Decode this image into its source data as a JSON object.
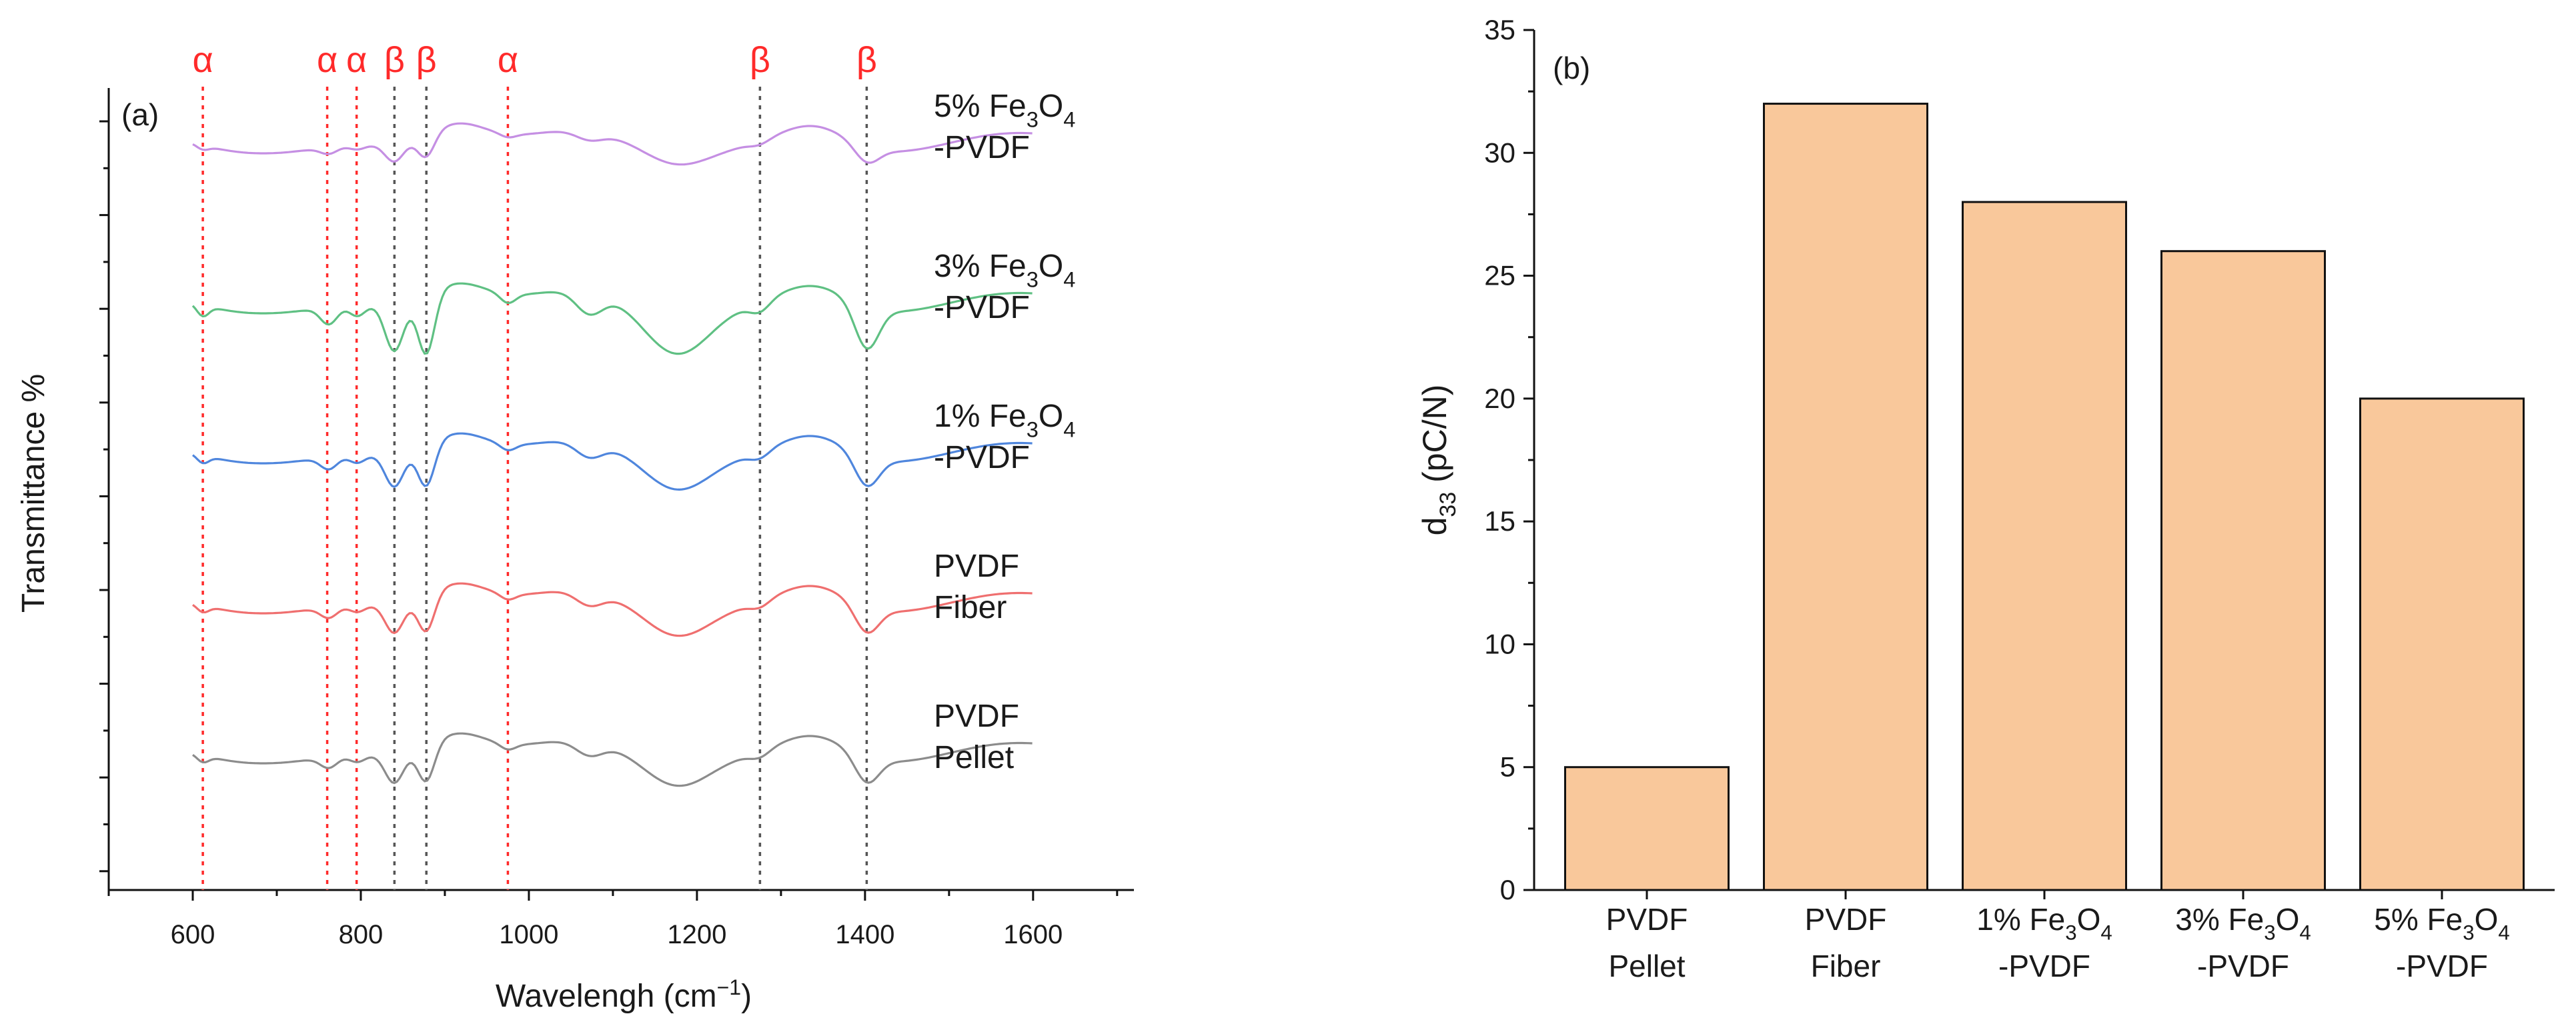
{
  "chart_data": [
    {
      "type": "line",
      "panel_label": "(a)",
      "title": "",
      "xlabel": "Wavelengh (cm",
      "xlabel_sup": "−1",
      "xlabel_end": ")",
      "ylabel": "Transmittance %",
      "xlim": [
        500,
        1720
      ],
      "xticks": [
        600,
        800,
        1000,
        1200,
        1400,
        1600
      ],
      "marker_lines": [
        {
          "x": 612,
          "label": "α",
          "kind": "alpha",
          "color": "#ff2a2a"
        },
        {
          "x": 760,
          "label": "α",
          "kind": "alpha",
          "color": "#ff2a2a"
        },
        {
          "x": 795,
          "label": "α",
          "kind": "alpha",
          "color": "#ff2a2a"
        },
        {
          "x": 840,
          "label": "β",
          "kind": "beta",
          "color": "#555555"
        },
        {
          "x": 878,
          "label": "β",
          "kind": "beta",
          "color": "#555555"
        },
        {
          "x": 975,
          "label": "α",
          "kind": "alpha",
          "color": "#ff2a2a"
        },
        {
          "x": 1275,
          "label": "β",
          "kind": "beta",
          "color": "#555555"
        },
        {
          "x": 1402,
          "label": "β",
          "kind": "beta",
          "color": "#555555"
        }
      ],
      "series": [
        {
          "name": "5% Fe3O4-PVDF",
          "label_line1": "5% Fe",
          "label_sub": "3",
          "label_mid": "O",
          "label_sub2": "4",
          "label_line2": "-PVDF",
          "color": "#c58fe3",
          "offset": 4,
          "amp": 0.38
        },
        {
          "name": "3% Fe3O4-PVDF",
          "label_line1": "3% Fe",
          "label_sub": "3",
          "label_mid": "O",
          "label_sub2": "4",
          "label_line2": "-PVDF",
          "color": "#5fc083",
          "offset": 3,
          "amp": 1.0
        },
        {
          "name": "1% Fe3O4-PVDF",
          "label_line1": "1% Fe",
          "label_sub": "3",
          "label_mid": "O",
          "label_sub2": "4",
          "label_line2": "-PVDF",
          "color": "#4f86dd",
          "offset": 2,
          "amp": 0.7
        },
        {
          "name": "PVDF Fiber",
          "label_line1": "PVDF",
          "label_sub": "",
          "label_mid": "",
          "label_sub2": "",
          "label_line2": "Fiber",
          "color": "#ef6f6f",
          "offset": 1,
          "amp": 0.62
        },
        {
          "name": "PVDF Pellet",
          "label_line1": "PVDF",
          "label_sub": "",
          "label_mid": "",
          "label_sub2": "",
          "label_line2": "Pellet",
          "color": "#8c8c8c",
          "offset": 0,
          "amp": 0.62
        }
      ]
    },
    {
      "type": "bar",
      "panel_label": "(b)",
      "title": "",
      "xlabel": "",
      "ylabel_main": "d",
      "ylabel_sub": "33",
      "ylabel_unit": " (pC/N)",
      "ylim": [
        0,
        35
      ],
      "yticks": [
        0,
        5,
        10,
        15,
        20,
        25,
        30,
        35
      ],
      "bar_color": "#f9c89b",
      "categories": [
        {
          "line1": "PVDF",
          "line1_sub": "",
          "line1_mid": "",
          "line1_sub2": "",
          "line2": "Pellet"
        },
        {
          "line1": "PVDF",
          "line1_sub": "",
          "line1_mid": "",
          "line1_sub2": "",
          "line2": "Fiber"
        },
        {
          "line1": "1% Fe",
          "line1_sub": "3",
          "line1_mid": "O",
          "line1_sub2": "4",
          "line2": "-PVDF"
        },
        {
          "line1": "3% Fe",
          "line1_sub": "3",
          "line1_mid": "O",
          "line1_sub2": "4",
          "line2": "-PVDF"
        },
        {
          "line1": "5% Fe",
          "line1_sub": "3",
          "line1_mid": "O",
          "line1_sub2": "4",
          "line2": "-PVDF"
        }
      ],
      "values": [
        5,
        32,
        28,
        26,
        20
      ]
    }
  ]
}
